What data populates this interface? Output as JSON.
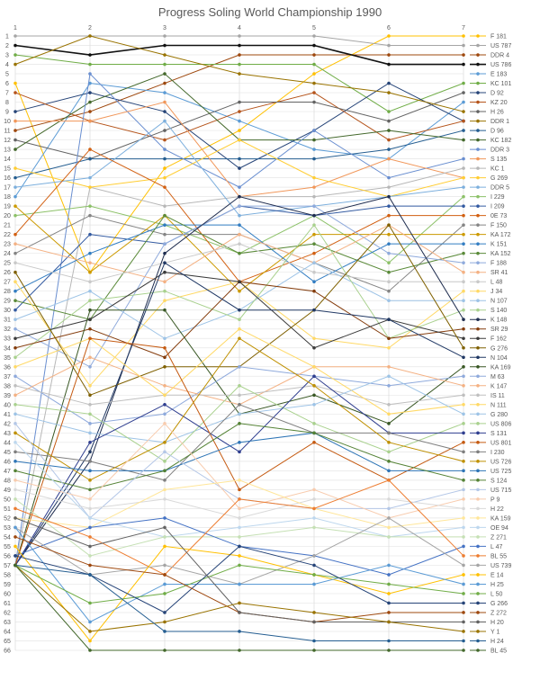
{
  "chart_data": {
    "type": "line",
    "title": "Progress Soling World Championship 1990",
    "x": [
      1,
      2,
      3,
      4,
      5,
      6,
      7
    ],
    "x_tick_labels": [
      "1",
      "2",
      "3",
      "4",
      "5",
      "6",
      "7"
    ],
    "y_tick_labels": [
      "1",
      "2",
      "3",
      "4",
      "5",
      "6",
      "7",
      "8",
      "9",
      "10",
      "11",
      "12",
      "13",
      "14",
      "15",
      "16",
      "17",
      "18",
      "19",
      "20",
      "21",
      "22",
      "23",
      "24",
      "25",
      "26",
      "27",
      "28",
      "29",
      "30",
      "31",
      "32",
      "33",
      "34",
      "35",
      "36",
      "37",
      "38",
      "39",
      "40",
      "41",
      "42",
      "43",
      "44",
      "45",
      "46",
      "47",
      "48",
      "49",
      "50",
      "51",
      "52",
      "53",
      "54",
      "55",
      "56",
      "57",
      "58",
      "59",
      "60",
      "61",
      "62",
      "63",
      "64",
      "65",
      "66"
    ],
    "ylim": [
      66,
      1
    ],
    "y_inverted": true,
    "grid": true,
    "legend": "right",
    "markers": true,
    "series": [
      {
        "name": "F 181",
        "color": "#FFC000",
        "values": [
          6,
          26,
          15,
          11,
          5,
          1,
          1
        ]
      },
      {
        "name": "US 787",
        "color": "#A5A5A5",
        "values": [
          1,
          1,
          1,
          1,
          1,
          2,
          2
        ]
      },
      {
        "name": "DDR 4",
        "color": "#9E480E",
        "values": [
          11,
          9,
          6,
          3,
          3,
          3,
          3
        ]
      },
      {
        "name": "US 786",
        "color": "#111111",
        "values": [
          2,
          3,
          2,
          2,
          2,
          4,
          4
        ]
      },
      {
        "name": "E 183",
        "color": "#5B9BD5",
        "values": [
          18,
          6,
          7,
          10,
          13,
          14,
          8
        ]
      },
      {
        "name": "KC 101",
        "color": "#70AD47",
        "values": [
          3,
          4,
          4,
          4,
          4,
          9,
          6
        ]
      },
      {
        "name": "D 92",
        "color": "#264478",
        "values": [
          9,
          7,
          9,
          15,
          11,
          6,
          10
        ]
      },
      {
        "name": "KZ 20",
        "color": "#B5541B",
        "values": [
          7,
          10,
          12,
          9,
          7,
          12,
          10
        ]
      },
      {
        "name": "H 26",
        "color": "#636363",
        "values": [
          12,
          14,
          11,
          8,
          8,
          10,
          7
        ]
      },
      {
        "name": "DDR 1",
        "color": "#997300",
        "values": [
          4,
          1,
          3,
          5,
          6,
          7,
          9
        ]
      },
      {
        "name": "D 96",
        "color": "#255E91",
        "values": [
          16,
          14,
          14,
          14,
          14,
          13,
          11
        ]
      },
      {
        "name": "KC 182",
        "color": "#43682B",
        "values": [
          13,
          8,
          5,
          12,
          12,
          11,
          12
        ]
      },
      {
        "name": "DDR 3",
        "color": "#698ED0",
        "values": [
          57,
          5,
          13,
          17,
          11,
          16,
          14
        ]
      },
      {
        "name": "S 135",
        "color": "#F1975A",
        "values": [
          10,
          10,
          8,
          18,
          17,
          14,
          16
        ]
      },
      {
        "name": "KC 1",
        "color": "#B7B7B7",
        "values": [
          57,
          17,
          19,
          18,
          18,
          17,
          15
        ]
      },
      {
        "name": "G 269",
        "color": "#FFCD33",
        "values": [
          15,
          17,
          16,
          12,
          16,
          18,
          16
        ]
      },
      {
        "name": "DDR 5",
        "color": "#7CAFDD",
        "values": [
          17,
          16,
          10,
          20,
          19,
          18,
          17
        ]
      },
      {
        "name": "I 229",
        "color": "#8CC168",
        "values": [
          20,
          19,
          21,
          24,
          20,
          25,
          18
        ]
      },
      {
        "name": "I 209",
        "color": "#335AA1",
        "values": [
          30,
          22,
          23,
          19,
          20,
          19,
          19
        ]
      },
      {
        "name": "0E 73",
        "color": "#D26012",
        "values": [
          22,
          13,
          17,
          27,
          24,
          20,
          20
        ]
      },
      {
        "name": "F 150",
        "color": "#848484",
        "values": [
          24,
          20,
          22,
          22,
          25,
          28,
          21
        ]
      },
      {
        "name": "KA 172",
        "color": "#CC9A00",
        "values": [
          19,
          26,
          20,
          28,
          22,
          22,
          22
        ]
      },
      {
        "name": "K 151",
        "color": "#327DC2",
        "values": [
          28,
          24,
          21,
          21,
          27,
          23,
          23
        ]
      },
      {
        "name": "KA 152",
        "color": "#5A8A39",
        "values": [
          29,
          31,
          20,
          24,
          23,
          26,
          24
        ]
      },
      {
        "name": "F 188",
        "color": "#8FAADC",
        "values": [
          32,
          36,
          23,
          19,
          19,
          24,
          25
        ]
      },
      {
        "name": "SR 41",
        "color": "#F4B183",
        "values": [
          23,
          25,
          27,
          22,
          25,
          21,
          26
        ]
      },
      {
        "name": "L 48",
        "color": "#C9C9C9",
        "values": [
          25,
          27,
          25,
          23,
          26,
          27,
          27
        ]
      },
      {
        "name": "J 34",
        "color": "#FFD966",
        "values": [
          27,
          38,
          29,
          27,
          33,
          34,
          28
        ]
      },
      {
        "name": "N 107",
        "color": "#9DC3E6",
        "values": [
          31,
          28,
          33,
          30,
          25,
          29,
          29
        ]
      },
      {
        "name": "S 140",
        "color": "#A9D18E",
        "values": [
          35,
          29,
          28,
          31,
          21,
          33,
          30
        ]
      },
      {
        "name": "K 148",
        "color": "#1F2D4F",
        "values": [
          57,
          46,
          24,
          18,
          20,
          18,
          31
        ]
      },
      {
        "name": "SR 29",
        "color": "#843C0C",
        "values": [
          34,
          32,
          35,
          27,
          28,
          33,
          32
        ]
      },
      {
        "name": "F 162",
        "color": "#3B3B3B",
        "values": [
          33,
          31,
          26,
          27,
          34,
          31,
          33
        ]
      },
      {
        "name": "G 276",
        "color": "#7F6000",
        "values": [
          26,
          39,
          36,
          36,
          30,
          21,
          34
        ]
      },
      {
        "name": "N 104",
        "color": "#203864",
        "values": [
          57,
          45,
          25,
          30,
          30,
          31,
          35
        ]
      },
      {
        "name": "KA 169",
        "color": "#385723",
        "values": [
          57,
          30,
          30,
          41,
          39,
          42,
          36
        ]
      },
      {
        "name": "M 63",
        "color": "#8FAADC",
        "values": [
          37,
          42,
          41,
          36,
          37,
          38,
          37
        ]
      },
      {
        "name": "K 147",
        "color": "#F4B183",
        "values": [
          39,
          35,
          38,
          40,
          36,
          36,
          38
        ]
      },
      {
        "name": "IS 11",
        "color": "#BFBFBF",
        "values": [
          38,
          40,
          39,
          39,
          38,
          40,
          39
        ]
      },
      {
        "name": "N 111",
        "color": "#FFD966",
        "values": [
          36,
          33,
          39,
          32,
          36,
          41,
          40
        ]
      },
      {
        "name": "G 280",
        "color": "#9DC3E6",
        "values": [
          41,
          43,
          44,
          41,
          40,
          37,
          41
        ]
      },
      {
        "name": "US 806",
        "color": "#A9D18E",
        "values": [
          40,
          41,
          46,
          38,
          42,
          45,
          42
        ]
      },
      {
        "name": "S 131",
        "color": "#2F3E8F",
        "values": [
          57,
          44,
          40,
          45,
          37,
          43,
          43
        ]
      },
      {
        "name": "US 801",
        "color": "#C55A11",
        "values": [
          57,
          33,
          34,
          49,
          44,
          48,
          44
        ]
      },
      {
        "name": "I 230",
        "color": "#7F7F7F",
        "values": [
          45,
          46,
          48,
          40,
          43,
          43,
          45
        ]
      },
      {
        "name": "US 726",
        "color": "#BF9000",
        "values": [
          43,
          48,
          44,
          33,
          38,
          44,
          46
        ]
      },
      {
        "name": "US 725",
        "color": "#2E75B6",
        "values": [
          46,
          47,
          47,
          44,
          43,
          47,
          47
        ]
      },
      {
        "name": "S 124",
        "color": "#548235",
        "values": [
          47,
          49,
          47,
          42,
          43,
          46,
          48
        ]
      },
      {
        "name": "US 715",
        "color": "#B4C7E7",
        "values": [
          42,
          52,
          45,
          50,
          51,
          51,
          49
        ]
      },
      {
        "name": "P 9",
        "color": "#F8CBAD",
        "values": [
          48,
          50,
          42,
          51,
          49,
          52,
          50
        ]
      },
      {
        "name": "H 22",
        "color": "#D9D9D9",
        "values": [
          49,
          51,
          50,
          52,
          50,
          50,
          51
        ]
      },
      {
        "name": "KA 159",
        "color": "#FFE699",
        "values": [
          52,
          53,
          49,
          48,
          51,
          53,
          52
        ]
      },
      {
        "name": "OE 94",
        "color": "#BDD7EE",
        "values": [
          44,
          52,
          54,
          53,
          52,
          54,
          53
        ]
      },
      {
        "name": "Z 271",
        "color": "#C5E0B4",
        "values": [
          50,
          56,
          54,
          54,
          53,
          54,
          54
        ]
      },
      {
        "name": "L 47",
        "color": "#4472C4",
        "values": [
          56,
          53,
          52,
          55,
          56,
          58,
          55
        ]
      },
      {
        "name": "BL 55",
        "color": "#ED7D31",
        "values": [
          51,
          54,
          58,
          50,
          51,
          48,
          56
        ]
      },
      {
        "name": "US 739",
        "color": "#A5A5A5",
        "values": [
          53,
          58,
          57,
          59,
          56,
          52,
          57
        ]
      },
      {
        "name": "E 14",
        "color": "#FFC000",
        "values": [
          55,
          65,
          55,
          56,
          58,
          60,
          58
        ]
      },
      {
        "name": "H 25",
        "color": "#5B9BD5",
        "values": [
          53,
          63,
          59,
          59,
          59,
          57,
          59
        ]
      },
      {
        "name": "L 50",
        "color": "#70AD47",
        "values": [
          57,
          61,
          60,
          57,
          58,
          59,
          60
        ]
      },
      {
        "name": "G 266",
        "color": "#264478",
        "values": [
          56,
          58,
          62,
          55,
          57,
          61,
          61
        ]
      },
      {
        "name": "Z 272",
        "color": "#9E480E",
        "values": [
          54,
          57,
          58,
          62,
          63,
          62,
          62
        ]
      },
      {
        "name": "H 20",
        "color": "#636363",
        "values": [
          52,
          55,
          53,
          62,
          63,
          63,
          63
        ]
      },
      {
        "name": "Y 1",
        "color": "#997300",
        "values": [
          57,
          64,
          63,
          61,
          62,
          63,
          64
        ]
      },
      {
        "name": "H 24",
        "color": "#255E91",
        "values": [
          57,
          58,
          64,
          64,
          65,
          65,
          65
        ]
      },
      {
        "name": "BL 45",
        "color": "#43682B",
        "values": [
          57,
          66,
          66,
          66,
          66,
          66,
          66
        ]
      }
    ]
  }
}
